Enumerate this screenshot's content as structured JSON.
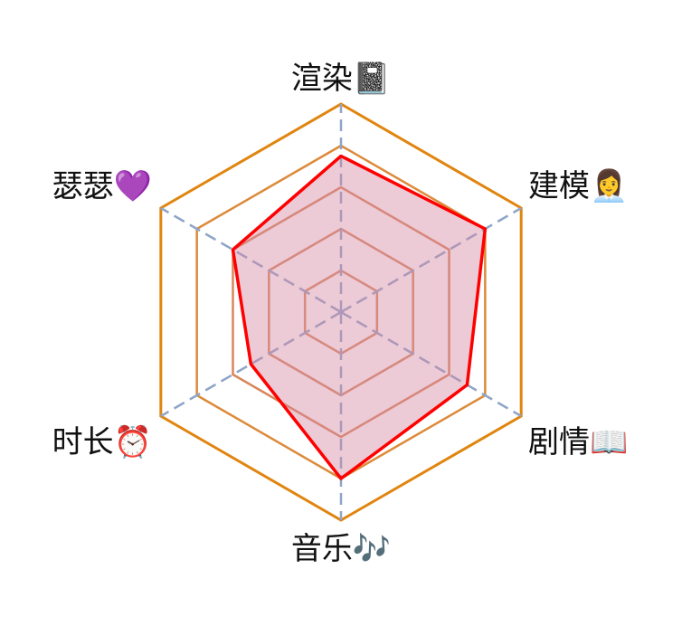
{
  "chart_data": {
    "type": "radar",
    "axes": [
      {
        "label": "渲染📓",
        "value": 0.75
      },
      {
        "label": "建模👩‍💼",
        "value": 0.8
      },
      {
        "label": "剧情📖",
        "value": 0.7
      },
      {
        "label": "音乐🎶",
        "value": 0.8
      },
      {
        "label": "时长⏰",
        "value": 0.5
      },
      {
        "label": "瑟瑟💜",
        "value": 0.6
      }
    ],
    "rings": 5,
    "range": [
      0,
      1
    ],
    "colors": {
      "grid": "#e0850f",
      "spoke": "#8fa5c8",
      "series_line": "#ff0000",
      "series_fill": "#d48aa3"
    }
  }
}
